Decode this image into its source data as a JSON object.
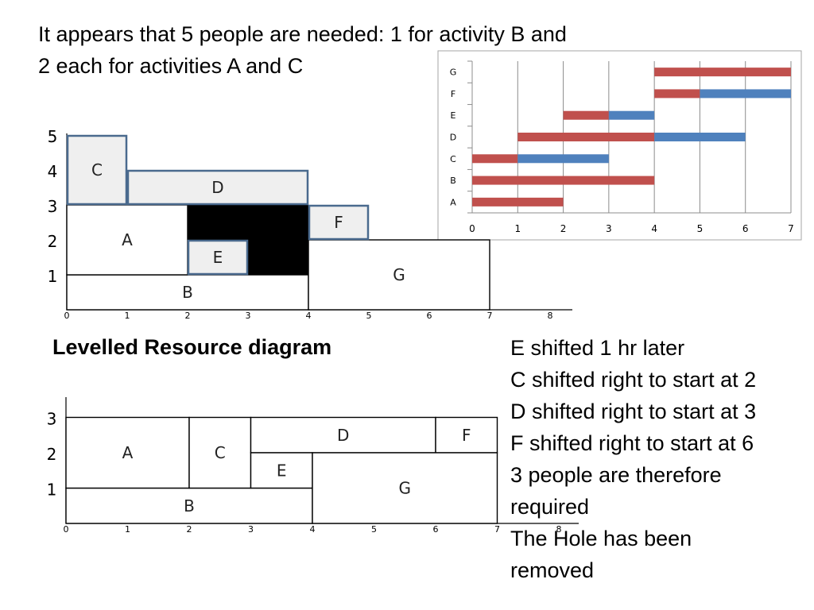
{
  "heading": {
    "lines": [
      "It appears that 5 people are needed: 1 for activity B and",
      "2 each for activities A and C"
    ]
  },
  "levelled_title": "Levelled Resource diagram",
  "notes": [
    "E  shifted 1 hr later",
    "C shifted right to start at 2",
    "D shifted right to start at 3",
    " F shifted right to start at 6",
    "3 people are therefore",
    "required",
    "The Hole has been",
    "removed"
  ],
  "chart_data": [
    {
      "type": "bar",
      "chart": "gantt",
      "categories": [
        "A",
        "B",
        "C",
        "D",
        "E",
        "F",
        "G"
      ],
      "x_ticks": [
        "0",
        "1",
        "2",
        "3",
        "4",
        "5",
        "6",
        "7"
      ],
      "xlim": [
        0,
        7
      ],
      "grid": true,
      "colors": {
        "critical": "#c0504d",
        "float": "#4f81bd"
      },
      "tasks": [
        {
          "name": "A",
          "segments": [
            {
              "start": 0,
              "end": 2,
              "kind": "critical"
            }
          ]
        },
        {
          "name": "B",
          "segments": [
            {
              "start": 0,
              "end": 4,
              "kind": "critical"
            }
          ]
        },
        {
          "name": "C",
          "segments": [
            {
              "start": 0,
              "end": 1,
              "kind": "critical"
            },
            {
              "start": 1,
              "end": 3,
              "kind": "float"
            }
          ]
        },
        {
          "name": "D",
          "segments": [
            {
              "start": 1,
              "end": 4,
              "kind": "critical"
            },
            {
              "start": 4,
              "end": 6,
              "kind": "float"
            }
          ]
        },
        {
          "name": "E",
          "segments": [
            {
              "start": 2,
              "end": 3,
              "kind": "critical"
            },
            {
              "start": 3,
              "end": 4,
              "kind": "float"
            }
          ]
        },
        {
          "name": "F",
          "segments": [
            {
              "start": 4,
              "end": 5,
              "kind": "critical"
            },
            {
              "start": 5,
              "end": 7,
              "kind": "float"
            }
          ]
        },
        {
          "name": "G",
          "segments": [
            {
              "start": 4,
              "end": 7,
              "kind": "critical"
            }
          ]
        }
      ]
    },
    {
      "type": "bar",
      "chart": "resource-histogram",
      "x_ticks": [
        "0",
        "1",
        "2",
        "3",
        "4",
        "5",
        "6",
        "7",
        "8"
      ],
      "y_ticks": [
        "1",
        "2",
        "3",
        "4",
        "5"
      ],
      "xlim": [
        0,
        8
      ],
      "ylim": [
        0,
        5
      ],
      "hole_color": "#000000",
      "blocks": [
        {
          "label": "B",
          "x0": 0,
          "x1": 4,
          "y0": 0,
          "y1": 1,
          "style": "plain"
        },
        {
          "label": "A",
          "x0": 0,
          "x1": 2,
          "y0": 1,
          "y1": 3,
          "style": "plain"
        },
        {
          "label": "C",
          "x0": 0,
          "x1": 1,
          "y0": 3,
          "y1": 5,
          "style": "shaded"
        },
        {
          "label": "D",
          "x0": 1,
          "x1": 4,
          "y0": 3,
          "y1": 4,
          "style": "shaded"
        },
        {
          "label": "E",
          "x0": 2,
          "x1": 3,
          "y0": 1,
          "y1": 2,
          "style": "shaded"
        },
        {
          "label": "F",
          "x0": 4,
          "x1": 5,
          "y0": 2,
          "y1": 3,
          "style": "shaded"
        },
        {
          "label": "G",
          "x0": 4,
          "x1": 7,
          "y0": 0,
          "y1": 2,
          "style": "plain"
        },
        {
          "label": "",
          "x0": 2,
          "x1": 4,
          "y0": 2,
          "y1": 3,
          "style": "hole"
        },
        {
          "label": "",
          "x0": 3,
          "x1": 4,
          "y0": 1,
          "y1": 2,
          "style": "hole"
        }
      ]
    },
    {
      "type": "bar",
      "chart": "resource-histogram",
      "title": "Levelled Resource diagram",
      "x_ticks": [
        "0",
        "1",
        "2",
        "3",
        "4",
        "5",
        "6",
        "7",
        "8"
      ],
      "y_ticks": [
        "1",
        "2",
        "3"
      ],
      "xlim": [
        0,
        8
      ],
      "ylim": [
        0,
        3
      ],
      "blocks": [
        {
          "label": "B",
          "x0": 0,
          "x1": 4,
          "y0": 0,
          "y1": 1,
          "style": "plain"
        },
        {
          "label": "A",
          "x0": 0,
          "x1": 2,
          "y0": 1,
          "y1": 3,
          "style": "plain"
        },
        {
          "label": "C",
          "x0": 2,
          "x1": 3,
          "y0": 1,
          "y1": 3,
          "style": "plain"
        },
        {
          "label": "D",
          "x0": 3,
          "x1": 6,
          "y0": 2,
          "y1": 3,
          "style": "plain"
        },
        {
          "label": "E",
          "x0": 3,
          "x1": 4,
          "y0": 1,
          "y1": 2,
          "style": "plain"
        },
        {
          "label": "F",
          "x0": 6,
          "x1": 7,
          "y0": 2,
          "y1": 3,
          "style": "plain"
        },
        {
          "label": "G",
          "x0": 4,
          "x1": 7,
          "y0": 0,
          "y1": 2,
          "style": "plain"
        }
      ]
    }
  ]
}
